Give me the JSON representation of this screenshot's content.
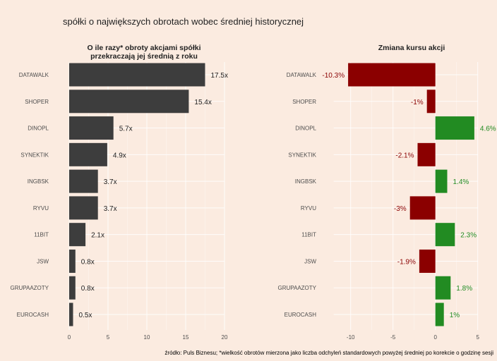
{
  "chart_data": [
    {
      "type": "bar",
      "orientation": "horizontal",
      "title": "O ile razy* obroty akcjami spółki przekraczają jej średnią z roku",
      "title_lines": [
        "O ile razy* obroty akcjami spółki",
        "przekraczają jej średnią z roku"
      ],
      "categories": [
        "DATAWALK",
        "SHOPER",
        "DINOPL",
        "SYNEKTIK",
        "INGBSK",
        "RYVU",
        "11BIT",
        "JSW",
        "GRUPAAZOTY",
        "EUROCASH"
      ],
      "values": [
        17.5,
        15.4,
        5.7,
        4.9,
        3.7,
        3.7,
        2.1,
        0.8,
        0.8,
        0.5
      ],
      "value_labels": [
        "17.5x",
        "15.4x",
        "5.7x",
        "4.9x",
        "3.7x",
        "3.7x",
        "2.1x",
        "0.8x",
        "0.8x",
        "0.5x"
      ],
      "xlim": [
        0,
        20
      ],
      "xticks": [
        0,
        5,
        10,
        15,
        20
      ],
      "xtick_labels": [
        "0",
        "5",
        "10",
        "15",
        "20"
      ],
      "bar_color": "#3d3d3d",
      "label_color": "#222222",
      "grid": true
    },
    {
      "type": "bar",
      "orientation": "horizontal",
      "title": "Zmiana kursu akcji",
      "title_lines": [
        "Zmiana kursu akcji"
      ],
      "categories": [
        "DATAWALK",
        "SHOPER",
        "DINOPL",
        "SYNEKTIK",
        "INGBSK",
        "RYVU",
        "11BIT",
        "JSW",
        "GRUPAAZOTY",
        "EUROCASH"
      ],
      "values": [
        -10.3,
        -1,
        4.6,
        -2.1,
        1.4,
        -3,
        2.3,
        -1.9,
        1.8,
        1
      ],
      "value_labels": [
        "-10.3%",
        "-1%",
        "4.6%",
        "-2.1%",
        "1.4%",
        "-3%",
        "2.3%",
        "-1.9%",
        "1.8%",
        "1%"
      ],
      "xlim": [
        -12,
        5
      ],
      "xticks": [
        -10,
        -5,
        0,
        5
      ],
      "xtick_labels": [
        "-10",
        "-5",
        "0",
        "5"
      ],
      "negative_color": "#8b0000",
      "positive_color": "#228b22",
      "grid": true
    }
  ],
  "main_title": "spółki o największych obrotach wobec średniej historycznej",
  "caption": "źródło: Puls Biznesu; *wielkość obrotów mierzona jako liczba odchyleń standardowych powyżej średniej po korekcie o godzinę sesji",
  "colors": {
    "background": "#fbebe0",
    "grid": "#ffffff"
  }
}
